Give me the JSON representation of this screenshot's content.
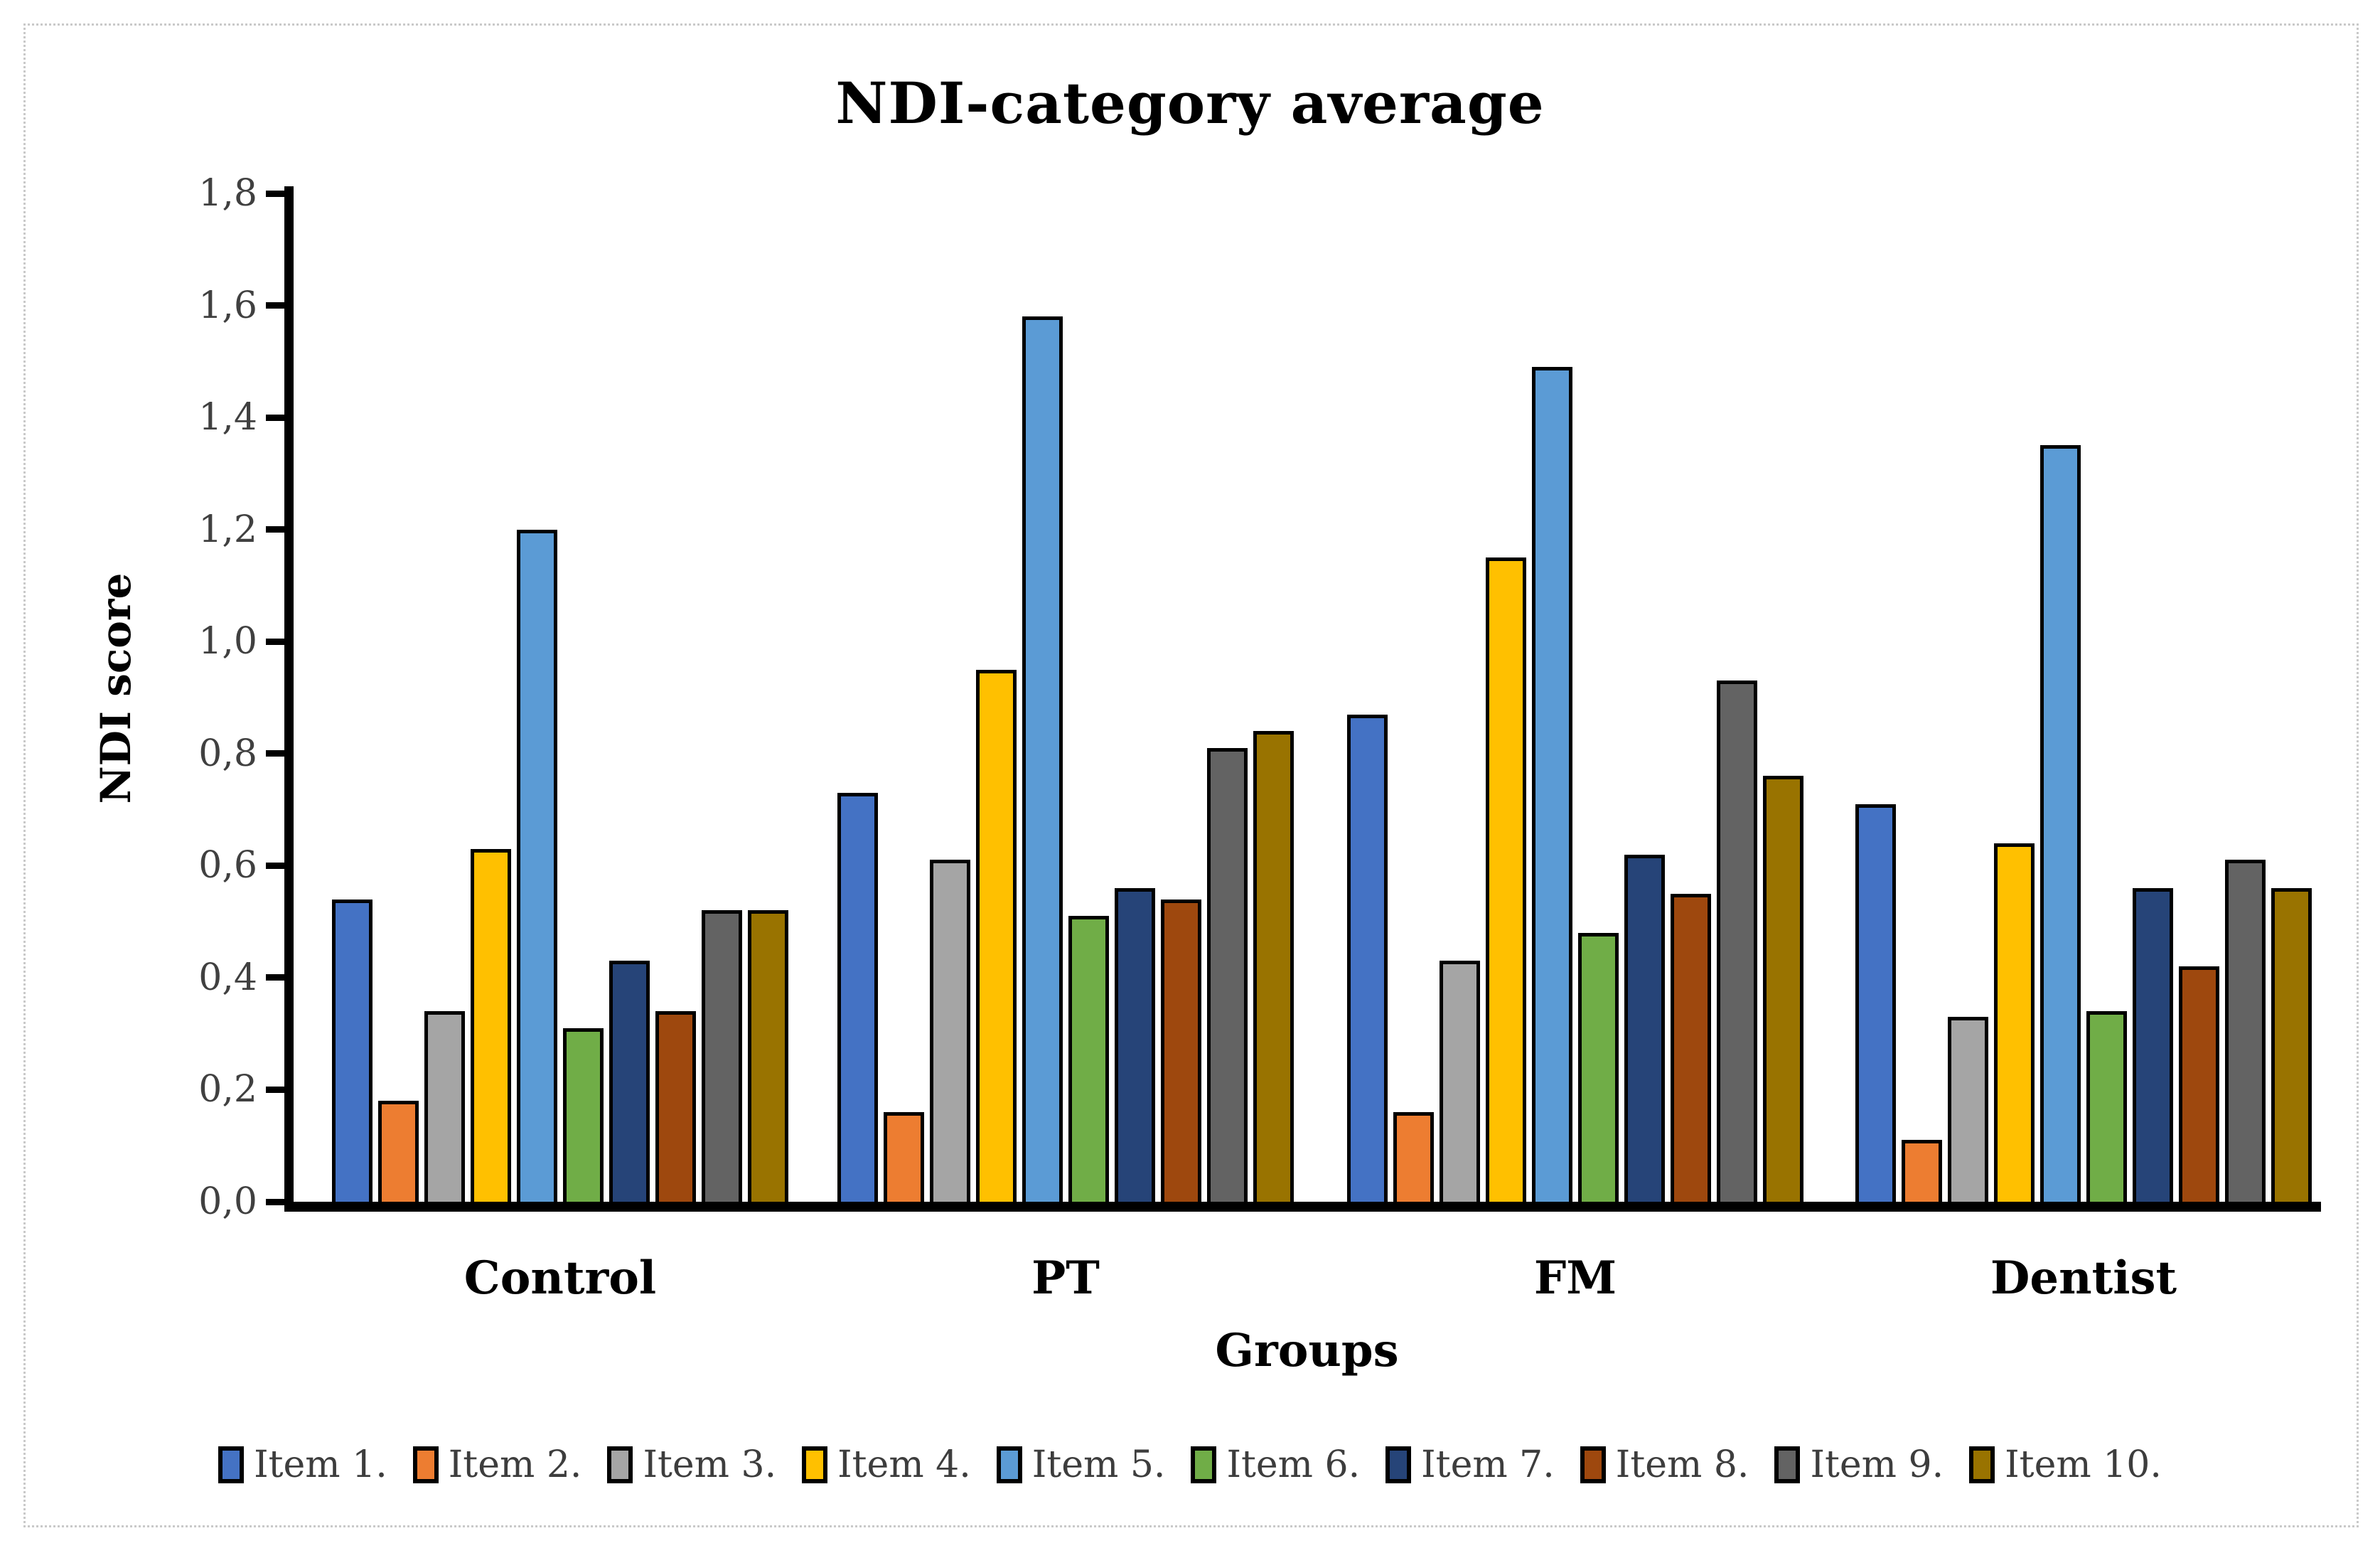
{
  "title": "NDI-category average",
  "y_axis": {
    "title": "NDI score",
    "tick_labels_top_to_bottom": [
      "1,8",
      "1,6",
      "1,4",
      "1,2",
      "1,0",
      "0,8",
      "0,6",
      "0,4",
      "0,2",
      "0,0"
    ],
    "min": 0.0,
    "max": 1.8,
    "step": 0.2,
    "decimal_separator": "comma"
  },
  "x_axis": {
    "title": "Groups",
    "categories": [
      "Control",
      "PT",
      "FM",
      "Dentist"
    ]
  },
  "legend": {
    "position": "bottom"
  },
  "chart_data": {
    "type": "bar",
    "title": "NDI-category average",
    "xlabel": "Groups",
    "ylabel": "NDI score",
    "ylim": [
      0,
      1.8
    ],
    "grid": false,
    "categories": [
      "Control",
      "PT",
      "FM",
      "Dentist"
    ],
    "series": [
      {
        "name": "Item 1.",
        "color": "#4472C4",
        "values": [
          0.54,
          0.73,
          0.87,
          0.71
        ]
      },
      {
        "name": "Item 2.",
        "color": "#ED7D31",
        "values": [
          0.18,
          0.16,
          0.16,
          0.11
        ]
      },
      {
        "name": "Item 3.",
        "color": "#A5A5A5",
        "values": [
          0.34,
          0.61,
          0.43,
          0.33
        ]
      },
      {
        "name": "Item 4.",
        "color": "#FFC000",
        "values": [
          0.63,
          0.95,
          1.15,
          0.64
        ]
      },
      {
        "name": "Item 5.",
        "color": "#5B9BD5",
        "values": [
          1.2,
          1.58,
          1.49,
          1.35
        ]
      },
      {
        "name": "Item 6.",
        "color": "#70AD47",
        "values": [
          0.31,
          0.51,
          0.48,
          0.34
        ]
      },
      {
        "name": "Item 7.",
        "color": "#264478",
        "values": [
          0.43,
          0.56,
          0.62,
          0.56
        ]
      },
      {
        "name": "Item 8.",
        "color": "#9E480E",
        "values": [
          0.34,
          0.54,
          0.55,
          0.42
        ]
      },
      {
        "name": "Item 9.",
        "color": "#636363",
        "values": [
          0.52,
          0.81,
          0.93,
          0.61
        ]
      },
      {
        "name": "Item 10.",
        "color": "#997300",
        "values": [
          0.52,
          0.84,
          0.76,
          0.56
        ]
      }
    ]
  }
}
